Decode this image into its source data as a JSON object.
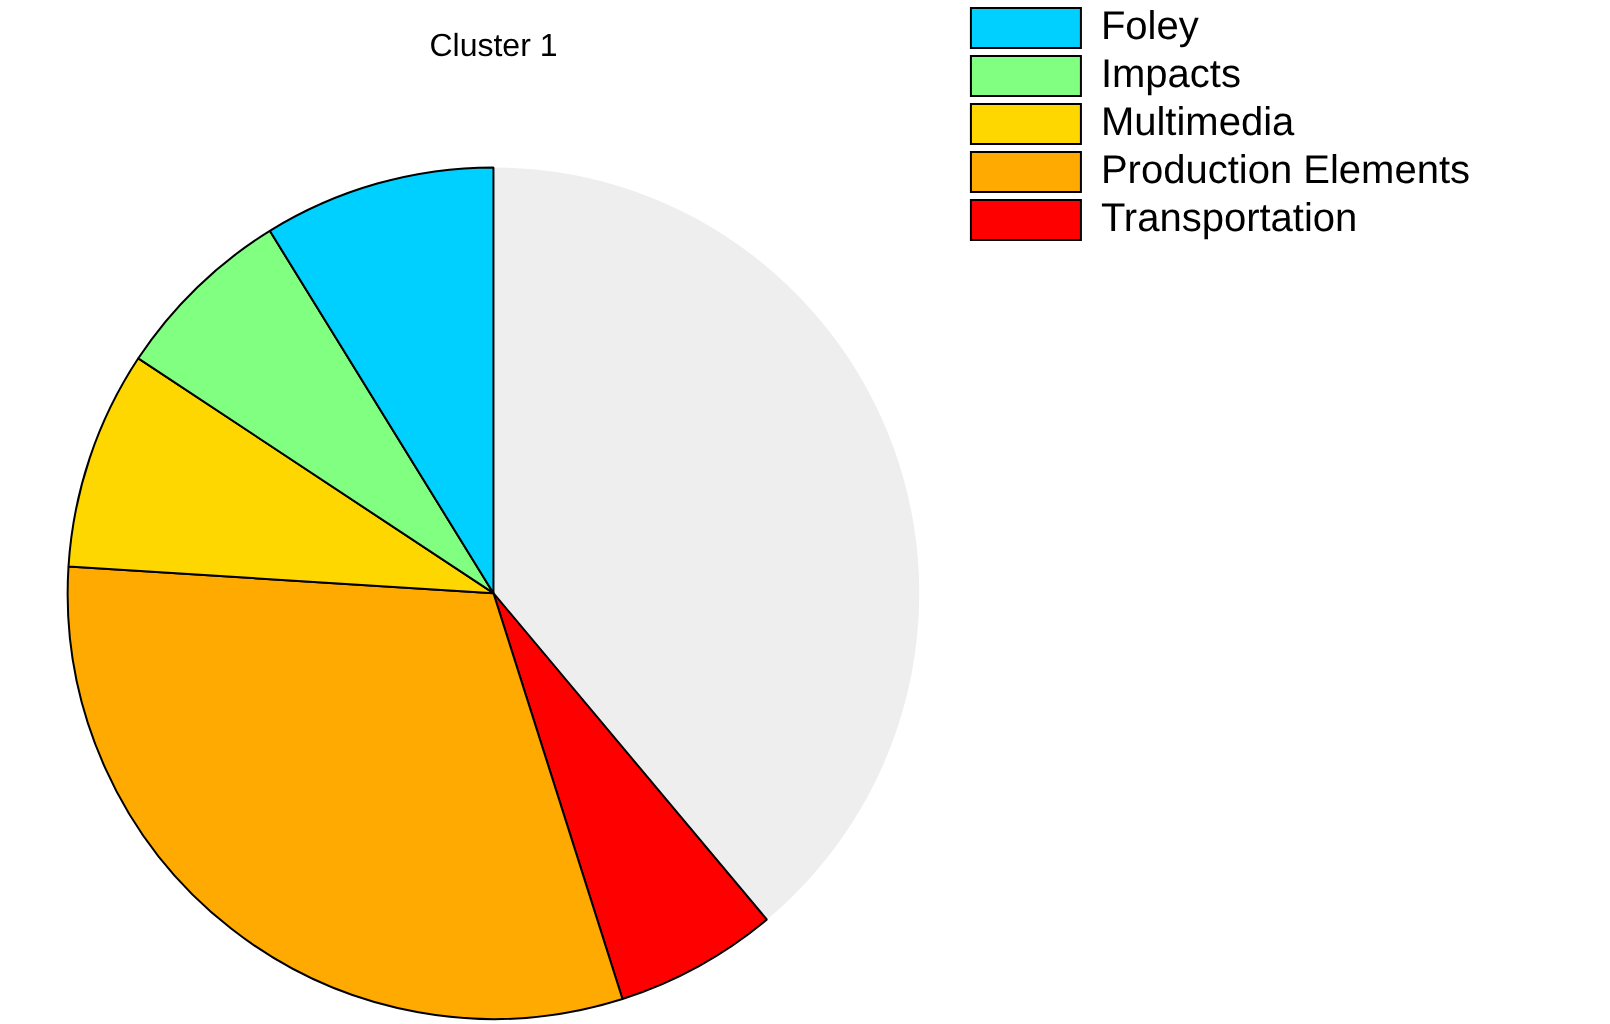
{
  "chart_data": {
    "type": "pie",
    "title": "Cluster 1",
    "categories": [
      "Foley",
      "Impacts",
      "Multimedia",
      "Production Elements",
      "Transportation",
      null
    ],
    "values": [
      8.8,
      6.9,
      8.3,
      30.9,
      6.2,
      38.9
    ],
    "colors": [
      "#00d0ff",
      "#80ff80",
      "#ffd700",
      "#ffaa00",
      "#ff0000",
      "#eeeeee"
    ],
    "legend": "top right"
  }
}
